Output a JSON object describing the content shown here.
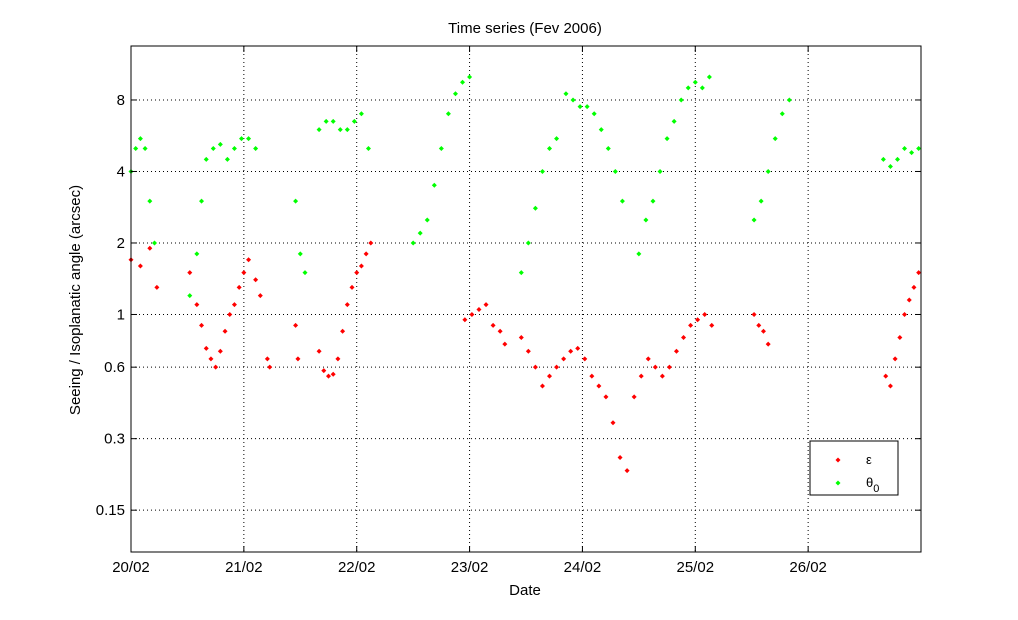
{
  "chart_data": {
    "type": "scatter",
    "title": "Time series (Fev 2006)",
    "xlabel": "Date",
    "ylabel": "Seeing / Isoplanatic angle (arcsec)",
    "xlim": [
      "2006-02-20",
      "2006-02-27"
    ],
    "x_ticks": [
      "20/02",
      "21/02",
      "22/02",
      "23/02",
      "24/02",
      "25/02",
      "26/02"
    ],
    "yscale": "log",
    "ylim": [
      0.1,
      13.5
    ],
    "y_ticks": [
      "0.15",
      "0.3",
      "0.6",
      "1",
      "2",
      "4",
      "8"
    ],
    "grid": true,
    "legend_position": "lower-right",
    "series": [
      {
        "name": "ε",
        "color": "#ff0000",
        "segments": [
          {
            "x": [
              "2006-02-20T00:00",
              "2006-02-20T02:00",
              "2006-02-20T04:00",
              "2006-02-20T05:30"
            ],
            "y": [
              1.7,
              1.6,
              1.9,
              1.3
            ]
          },
          {
            "x": [
              "2006-02-20T12:30",
              "2006-02-20T14:00",
              "2006-02-20T15:00",
              "2006-02-20T16:00",
              "2006-02-20T17:00",
              "2006-02-20T18:00",
              "2006-02-20T19:00",
              "2006-02-20T20:00",
              "2006-02-20T21:00",
              "2006-02-20T22:00",
              "2006-02-20T23:00",
              "2006-02-21T00:00",
              "2006-02-21T01:00",
              "2006-02-21T02:30",
              "2006-02-21T03:30"
            ],
            "y": [
              1.5,
              1.1,
              0.9,
              0.72,
              0.65,
              0.6,
              0.7,
              0.85,
              1.0,
              1.1,
              1.3,
              1.5,
              1.7,
              1.4,
              1.2
            ]
          },
          {
            "x": [
              "2006-02-21T05:00",
              "2006-02-21T05:30"
            ],
            "y": [
              0.65,
              0.6
            ]
          },
          {
            "x": [
              "2006-02-21T11:00",
              "2006-02-21T11:30"
            ],
            "y": [
              0.9,
              0.65
            ]
          },
          {
            "x": [
              "2006-02-21T16:00",
              "2006-02-21T17:00",
              "2006-02-21T18:00",
              "2006-02-21T19:00",
              "2006-02-21T20:00",
              "2006-02-21T21:00",
              "2006-02-21T22:00",
              "2006-02-21T23:00",
              "2006-02-22T00:00",
              "2006-02-22T01:00",
              "2006-02-22T02:00",
              "2006-02-22T03:00"
            ],
            "y": [
              0.7,
              0.58,
              0.55,
              0.56,
              0.65,
              0.85,
              1.1,
              1.3,
              1.5,
              1.6,
              1.8,
              2.0
            ]
          },
          {
            "x": [
              "2006-02-22T23:00",
              "2006-02-23T00:30",
              "2006-02-23T02:00",
              "2006-02-23T03:30",
              "2006-02-23T05:00",
              "2006-02-23T06:30",
              "2006-02-23T07:30"
            ],
            "y": [
              0.95,
              1.0,
              1.05,
              1.1,
              0.9,
              0.85,
              0.75
            ]
          },
          {
            "x": [
              "2006-02-23T11:00",
              "2006-02-23T12:30",
              "2006-02-23T14:00",
              "2006-02-23T15:30",
              "2006-02-23T17:00",
              "2006-02-23T18:30",
              "2006-02-23T20:00",
              "2006-02-23T21:30",
              "2006-02-23T23:00",
              "2006-02-24T00:30",
              "2006-02-24T02:00",
              "2006-02-24T03:30",
              "2006-02-24T05:00",
              "2006-02-24T06:30",
              "2006-02-24T08:00",
              "2006-02-24T09:30",
              "2006-02-24T11:00",
              "2006-02-24T12:30",
              "2006-02-24T14:00",
              "2006-02-24T15:30",
              "2006-02-24T17:00",
              "2006-02-24T18:30",
              "2006-02-24T20:00",
              "2006-02-24T21:30",
              "2006-02-24T23:00",
              "2006-02-25T00:30",
              "2006-02-25T02:00",
              "2006-02-25T03:30"
            ],
            "y": [
              0.8,
              0.7,
              0.6,
              0.5,
              0.55,
              0.6,
              0.65,
              0.7,
              0.72,
              0.65,
              0.55,
              0.5,
              0.45,
              0.35,
              0.25,
              0.22,
              0.45,
              0.55,
              0.65,
              0.6,
              0.55,
              0.6,
              0.7,
              0.8,
              0.9,
              0.95,
              1.0,
              0.9
            ]
          },
          {
            "x": [
              "2006-02-25T12:30",
              "2006-02-25T13:30",
              "2006-02-25T14:30",
              "2006-02-25T15:30"
            ],
            "y": [
              1.0,
              0.9,
              0.85,
              0.75
            ]
          },
          {
            "x": [
              "2006-02-26T16:30",
              "2006-02-26T17:30",
              "2006-02-26T18:30",
              "2006-02-26T19:30",
              "2006-02-26T20:30",
              "2006-02-26T21:30",
              "2006-02-26T22:30",
              "2006-02-26T23:30"
            ],
            "y": [
              0.55,
              0.5,
              0.65,
              0.8,
              1.0,
              1.15,
              1.3,
              1.5
            ]
          }
        ]
      },
      {
        "name": "θ0",
        "color": "#00ff00",
        "segments": [
          {
            "x": [
              "2006-02-20T00:00",
              "2006-02-20T01:00",
              "2006-02-20T02:00",
              "2006-02-20T03:00",
              "2006-02-20T04:00",
              "2006-02-20T05:00"
            ],
            "y": [
              4.0,
              5.0,
              5.5,
              5.0,
              3.0,
              2.0
            ]
          },
          {
            "x": [
              "2006-02-20T12:30",
              "2006-02-20T14:00",
              "2006-02-20T15:00",
              "2006-02-20T16:00",
              "2006-02-20T17:30",
              "2006-02-20T19:00",
              "2006-02-20T20:30",
              "2006-02-20T22:00",
              "2006-02-20T23:30",
              "2006-02-21T01:00",
              "2006-02-21T02:30"
            ],
            "y": [
              1.2,
              1.8,
              3.0,
              4.5,
              5.0,
              5.2,
              4.5,
              5.0,
              5.5,
              5.5,
              5.0
            ]
          },
          {
            "x": [
              "2006-02-21T11:00",
              "2006-02-21T12:00",
              "2006-02-21T13:00"
            ],
            "y": [
              3.0,
              1.8,
              1.5
            ]
          },
          {
            "x": [
              "2006-02-21T16:00",
              "2006-02-21T17:30",
              "2006-02-21T19:00",
              "2006-02-21T20:30",
              "2006-02-21T22:00",
              "2006-02-21T23:30",
              "2006-02-22T01:00",
              "2006-02-22T02:30"
            ],
            "y": [
              6.0,
              6.5,
              6.5,
              6.0,
              6.0,
              6.5,
              7.0,
              5.0
            ]
          },
          {
            "x": [
              "2006-02-22T12:00",
              "2006-02-22T13:30",
              "2006-02-22T15:00",
              "2006-02-22T16:30",
              "2006-02-22T18:00",
              "2006-02-22T19:30",
              "2006-02-22T21:00",
              "2006-02-22T22:30",
              "2006-02-23T00:00"
            ],
            "y": [
              2.0,
              2.2,
              2.5,
              3.5,
              5.0,
              7.0,
              8.5,
              9.5,
              10.0
            ]
          },
          {
            "x": [
              "2006-02-23T11:00",
              "2006-02-23T12:30",
              "2006-02-23T14:00",
              "2006-02-23T15:30",
              "2006-02-23T17:00",
              "2006-02-23T18:30",
              "2006-02-23T20:30",
              "2006-02-23T22:00",
              "2006-02-23T23:30",
              "2006-02-24T01:00",
              "2006-02-24T02:30",
              "2006-02-24T04:00",
              "2006-02-24T05:30",
              "2006-02-24T07:00",
              "2006-02-24T08:30"
            ],
            "y": [
              1.5,
              2.0,
              2.8,
              4.0,
              5.0,
              5.5,
              8.5,
              8.0,
              7.5,
              7.5,
              7.0,
              6.0,
              5.0,
              4.0,
              3.0
            ]
          },
          {
            "x": [
              "2006-02-24T12:00",
              "2006-02-24T13:30",
              "2006-02-24T15:00",
              "2006-02-24T16:30",
              "2006-02-24T18:00",
              "2006-02-24T19:30",
              "2006-02-24T21:00",
              "2006-02-24T22:30",
              "2006-02-25T00:00",
              "2006-02-25T01:30",
              "2006-02-25T03:00"
            ],
            "y": [
              1.8,
              2.5,
              3.0,
              4.0,
              5.5,
              6.5,
              8.0,
              9.0,
              9.5,
              9.0,
              10.0
            ]
          },
          {
            "x": [
              "2006-02-25T12:30",
              "2006-02-25T14:00",
              "2006-02-25T15:30",
              "2006-02-25T17:00",
              "2006-02-25T18:30",
              "2006-02-25T20:00"
            ],
            "y": [
              2.5,
              3.0,
              4.0,
              5.5,
              7.0,
              8.0
            ]
          },
          {
            "x": [
              "2006-02-26T16:00",
              "2006-02-26T17:30",
              "2006-02-26T19:00",
              "2006-02-26T20:30",
              "2006-02-26T22:00",
              "2006-02-26T23:30"
            ],
            "y": [
              4.5,
              4.2,
              4.5,
              5.0,
              4.8,
              5.0
            ]
          }
        ]
      }
    ]
  }
}
